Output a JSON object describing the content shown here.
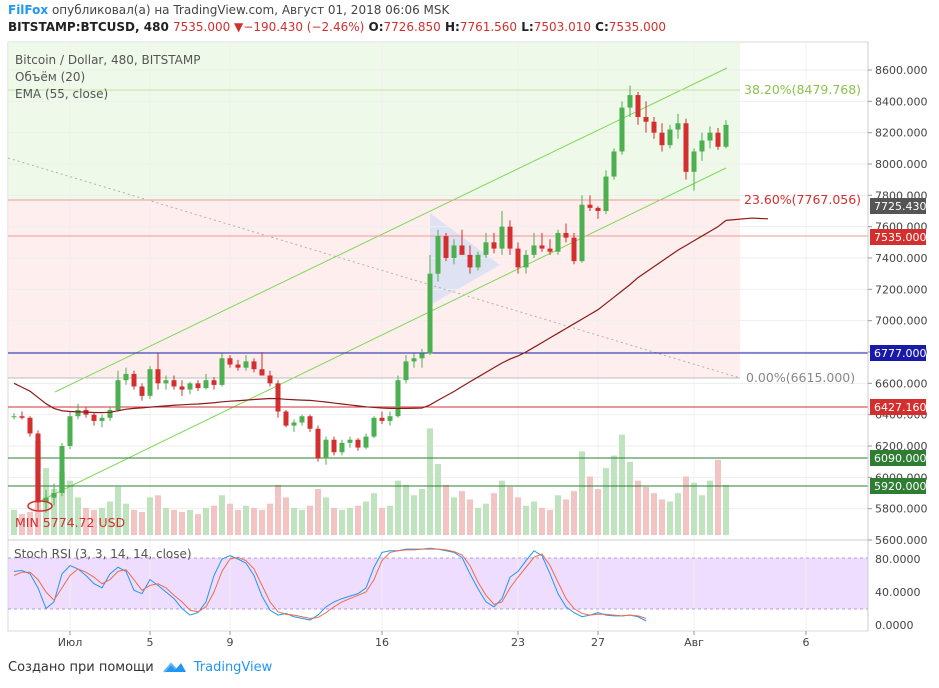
{
  "header": {
    "brand": "FilFox",
    "published": "опубликовал(а) на TradingView.com, Август 01, 2018 06:06 MSK",
    "symbol": "BITSTAMP:BTCUSD, 480",
    "change": "7535.000 ▼−190.430 (−2.46%)",
    "o_label": "O:",
    "o_value": "7726.850",
    "h_label": "H:",
    "h_value": "7761.560",
    "l_label": "L:",
    "l_value": "7503.010",
    "c_label": "C:",
    "c_value": "7535.000"
  },
  "legend": {
    "title": "Bitcoin / Dollar, 480, BITSTAMP",
    "volume": "Объём (20)",
    "ema": "EMA (55, close)"
  },
  "footer": {
    "created_with": "Создано при помощи",
    "tradingview": "TradingView"
  },
  "colors": {
    "up": "#4caf50",
    "down": "#d32f2f",
    "ema": "#8b1a1a",
    "channel": "#7ed957",
    "blue_line": "#1a1aa8",
    "stoch_k": "#2196f3",
    "stoch_d": "#ef6c4a",
    "stoch_band": "#e4c6ff"
  },
  "chart_data": [
    {
      "type": "candlestick",
      "ylim": [
        5600,
        8700
      ],
      "y_ticks": [
        "8600.000",
        "8400.000",
        "8200.000",
        "8000.000",
        "7800.000",
        "7600.000",
        "7400.000",
        "7200.000",
        "7000.000",
        "6800.000",
        "6600.000",
        "6400.000",
        "6200.000",
        "6000.000",
        "5800.000",
        "5600.000"
      ],
      "x_labels": [
        "Июл",
        "5",
        "9",
        "16",
        "23",
        "27",
        "Авг",
        "6"
      ],
      "x_label_bars": [
        7,
        17,
        27,
        46,
        63,
        73,
        85,
        99
      ],
      "candles": [
        [
          6390,
          6410,
          6370,
          6390
        ],
        [
          6390,
          6420,
          6370,
          6380
        ],
        [
          6380,
          6390,
          6260,
          6280
        ],
        [
          6280,
          6300,
          5790,
          5840
        ],
        [
          5840,
          5920,
          5774.72,
          5870
        ],
        [
          5870,
          5960,
          5820,
          5900
        ],
        [
          5900,
          6220,
          5880,
          6200
        ],
        [
          6200,
          6420,
          6180,
          6390
        ],
        [
          6390,
          6470,
          6370,
          6430
        ],
        [
          6430,
          6450,
          6380,
          6400
        ],
        [
          6400,
          6410,
          6330,
          6360
        ],
        [
          6360,
          6400,
          6320,
          6380
        ],
        [
          6380,
          6450,
          6360,
          6430
        ],
        [
          6430,
          6680,
          6420,
          6620
        ],
        [
          6620,
          6700,
          6590,
          6660
        ],
        [
          6660,
          6680,
          6560,
          6580
        ],
        [
          6580,
          6600,
          6490,
          6520
        ],
        [
          6520,
          6710,
          6500,
          6690
        ],
        [
          6690,
          6790,
          6560,
          6600
        ],
        [
          6600,
          6650,
          6560,
          6620
        ],
        [
          6620,
          6650,
          6560,
          6580
        ],
        [
          6580,
          6620,
          6520,
          6560
        ],
        [
          6560,
          6610,
          6530,
          6600
        ],
        [
          6600,
          6620,
          6550,
          6570
        ],
        [
          6570,
          6660,
          6560,
          6620
        ],
        [
          6620,
          6640,
          6560,
          6590
        ],
        [
          6590,
          6790,
          6580,
          6760
        ],
        [
          6760,
          6780,
          6700,
          6720
        ],
        [
          6720,
          6750,
          6680,
          6700
        ],
        [
          6700,
          6780,
          6680,
          6740
        ],
        [
          6740,
          6760,
          6670,
          6690
        ],
        [
          6690,
          6800,
          6660,
          6650
        ],
        [
          6650,
          6680,
          6580,
          6600
        ],
        [
          6600,
          6620,
          6380,
          6420
        ],
        [
          6420,
          6430,
          6320,
          6330
        ],
        [
          6330,
          6370,
          6290,
          6350
        ],
        [
          6350,
          6400,
          6330,
          6390
        ],
        [
          6390,
          6400,
          6290,
          6310
        ],
        [
          6310,
          6330,
          6100,
          6120
        ],
        [
          6120,
          6260,
          6080,
          6240
        ],
        [
          6240,
          6260,
          6140,
          6160
        ],
        [
          6160,
          6240,
          6140,
          6220
        ],
        [
          6220,
          6260,
          6190,
          6240
        ],
        [
          6240,
          6250,
          6170,
          6190
        ],
        [
          6190,
          6280,
          6180,
          6260
        ],
        [
          6260,
          6390,
          6250,
          6380
        ],
        [
          6380,
          6420,
          6340,
          6360
        ],
        [
          6360,
          6420,
          6330,
          6390
        ],
        [
          6390,
          6650,
          6380,
          6620
        ],
        [
          6620,
          6780,
          6600,
          6740
        ],
        [
          6740,
          6790,
          6700,
          6760
        ],
        [
          6760,
          6820,
          6700,
          6790
        ],
        [
          6790,
          7420,
          6780,
          7300
        ],
        [
          7300,
          7580,
          7250,
          7540
        ],
        [
          7540,
          7560,
          7380,
          7400
        ],
        [
          7400,
          7520,
          7360,
          7480
        ],
        [
          7480,
          7580,
          7440,
          7420
        ],
        [
          7420,
          7480,
          7300,
          7340
        ],
        [
          7340,
          7440,
          7320,
          7420
        ],
        [
          7420,
          7560,
          7400,
          7500
        ],
        [
          7500,
          7560,
          7430,
          7460
        ],
        [
          7460,
          7700,
          7420,
          7600
        ],
        [
          7600,
          7640,
          7420,
          7460
        ],
        [
          7460,
          7500,
          7300,
          7340
        ],
        [
          7340,
          7450,
          7300,
          7420
        ],
        [
          7420,
          7560,
          7400,
          7480
        ],
        [
          7480,
          7560,
          7440,
          7460
        ],
        [
          7460,
          7520,
          7420,
          7440
        ],
        [
          7440,
          7580,
          7420,
          7560
        ],
        [
          7560,
          7620,
          7500,
          7530
        ],
        [
          7530,
          7560,
          7360,
          7380
        ],
        [
          7380,
          7800,
          7370,
          7740
        ],
        [
          7740,
          7800,
          7700,
          7720
        ],
        [
          7720,
          7730,
          7650,
          7700
        ],
        [
          7700,
          7960,
          7680,
          7920
        ],
        [
          7920,
          8100,
          7900,
          8080
        ],
        [
          8080,
          8400,
          8060,
          8360
        ],
        [
          8360,
          8500,
          8300,
          8440
        ],
        [
          8440,
          8460,
          8250,
          8300
        ],
        [
          8300,
          8400,
          8200,
          8270
        ],
        [
          8270,
          8300,
          8160,
          8200
        ],
        [
          8200,
          8260,
          8080,
          8120
        ],
        [
          8120,
          8250,
          8100,
          8220
        ],
        [
          8220,
          8320,
          8160,
          8260
        ],
        [
          8260,
          8290,
          7900,
          7950
        ],
        [
          7950,
          8100,
          7830,
          8080
        ],
        [
          8080,
          8200,
          8020,
          8150
        ],
        [
          8150,
          8240,
          8100,
          8200
        ],
        [
          8200,
          8230,
          8090,
          8110
        ],
        [
          8110,
          8280,
          8100,
          8250
        ]
      ],
      "volumes": [
        1.2,
        1.0,
        1.1,
        4.5,
        3.2,
        2.2,
        3.0,
        2.6,
        1.8,
        1.3,
        1.2,
        1.3,
        1.6,
        2.3,
        1.5,
        1.2,
        1.1,
        1.8,
        1.9,
        1.3,
        1.2,
        1.1,
        1.2,
        1.0,
        1.3,
        1.4,
        1.9,
        1.5,
        1.2,
        1.4,
        1.3,
        1.2,
        1.5,
        2.4,
        1.8,
        1.3,
        1.2,
        1.4,
        2.2,
        1.8,
        1.3,
        1.2,
        1.3,
        1.4,
        1.6,
        2.0,
        1.3,
        1.4,
        2.6,
        2.4,
        1.9,
        2.2,
        5.1,
        3.4,
        2.4,
        1.8,
        2.1,
        1.7,
        1.3,
        1.5,
        2.0,
        2.6,
        2.3,
        1.8,
        1.4,
        1.6,
        1.3,
        1.2,
        1.9,
        1.7,
        2.1,
        4.0,
        2.8,
        2.2,
        3.2,
        3.8,
        4.8,
        3.5,
        2.6,
        2.3,
        2.0,
        1.7,
        1.6,
        2.0,
        2.8,
        2.5,
        1.9,
        2.6,
        3.6,
        2.4
      ],
      "ema_values": [
        6600,
        6575,
        6550,
        6510,
        6470,
        6440,
        6425,
        6420,
        6418,
        6416,
        6414,
        6413,
        6415,
        6425,
        6435,
        6440,
        6443,
        6448,
        6452,
        6456,
        6460,
        6463,
        6466,
        6468,
        6472,
        6476,
        6482,
        6486,
        6489,
        6493,
        6497,
        6500,
        6503,
        6502,
        6498,
        6495,
        6493,
        6491,
        6486,
        6481,
        6474,
        6468,
        6462,
        6456,
        6450,
        6446,
        6442,
        6440,
        6440,
        6440,
        6441,
        6442,
        6462,
        6492,
        6520,
        6548,
        6580,
        6610,
        6640,
        6670,
        6700,
        6730,
        6755,
        6775,
        6800,
        6830,
        6860,
        6890,
        6920,
        6950,
        6980,
        7010,
        7040,
        7070,
        7110,
        7150,
        7190,
        7230,
        7275,
        7310,
        7345,
        7380,
        7415,
        7450,
        7480,
        7510,
        7540,
        7570,
        7600,
        7640
      ],
      "levels": {
        "fib_38_2": "38.20%(8479.768)",
        "fib_23_6": "23.60%(7767.056)",
        "fib_0": "0.00%(6615.000)"
      },
      "price_tags": [
        "7725.430",
        "7535.000",
        "6777.000",
        "6427.160",
        "6090.000",
        "5920.000"
      ],
      "min_label": "MIN 5774.72 USD"
    },
    {
      "type": "line",
      "title": "Stoch RSI (3, 3, 14, 14, close)",
      "ylim": [
        0,
        100
      ],
      "y_ticks": [
        "80.0000",
        "40.0000",
        "0.0000"
      ],
      "series": [
        {
          "name": "K",
          "values": [
            65,
            66,
            62,
            45,
            20,
            28,
            62,
            72,
            68,
            60,
            50,
            45,
            62,
            70,
            65,
            42,
            38,
            55,
            48,
            40,
            32,
            20,
            12,
            15,
            28,
            60,
            80,
            84,
            80,
            75,
            60,
            35,
            18,
            12,
            14,
            10,
            8,
            6,
            12,
            22,
            28,
            32,
            35,
            38,
            45,
            70,
            88,
            90,
            90,
            92,
            92,
            92,
            93,
            92,
            90,
            88,
            82,
            62,
            44,
            28,
            22,
            32,
            58,
            65,
            78,
            90,
            84,
            62,
            38,
            22,
            15,
            10,
            12,
            15,
            12,
            11,
            11,
            12,
            10,
            5
          ]
        },
        {
          "name": "D",
          "values": [
            60,
            64,
            64,
            55,
            40,
            30,
            45,
            60,
            68,
            64,
            58,
            50,
            55,
            65,
            67,
            55,
            42,
            48,
            50,
            45,
            36,
            28,
            18,
            16,
            22,
            40,
            65,
            80,
            82,
            78,
            68,
            48,
            28,
            16,
            13,
            12,
            10,
            8,
            9,
            15,
            22,
            28,
            32,
            36,
            40,
            55,
            78,
            88,
            90,
            91,
            91,
            92,
            92,
            92,
            91,
            89,
            85,
            72,
            52,
            36,
            25,
            28,
            45,
            58,
            70,
            82,
            86,
            72,
            52,
            32,
            20,
            14,
            12,
            13,
            13,
            12,
            11,
            12,
            11,
            8
          ]
        }
      ]
    }
  ]
}
